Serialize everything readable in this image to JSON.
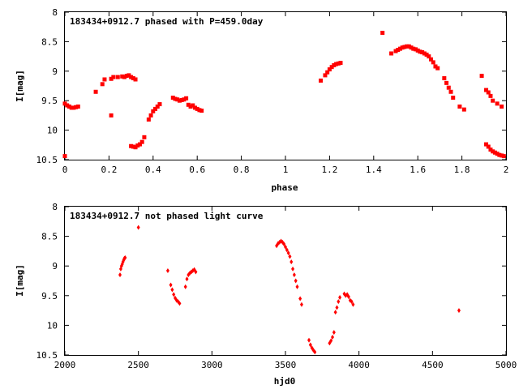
{
  "chart_data": [
    {
      "type": "scatter",
      "title": "183434+0912.7 phased with P=459.0day",
      "xlabel": "phase",
      "ylabel": "I[mag]",
      "xlim": [
        0,
        2
      ],
      "ylim": [
        8,
        10.5
      ],
      "y_inverted": true,
      "grid": false,
      "marker_color": "#ff0000",
      "x_ticks": [
        0,
        0.2,
        0.4,
        0.6,
        0.8,
        1,
        1.2,
        1.4,
        1.6,
        1.8,
        2
      ],
      "x_tick_labels": [
        "0",
        "0.2",
        "0.4",
        "0.6",
        "0.8",
        "1",
        "1.2",
        "1.4",
        "1.6",
        "1.8",
        "2"
      ],
      "y_ticks": [
        8,
        8.5,
        9,
        9.5,
        10,
        10.5
      ],
      "y_tick_labels": [
        "8",
        "8.5",
        "9",
        "9.5",
        "10",
        "10.5"
      ],
      "points": [
        [
          0.0,
          10.44
        ],
        [
          0.0,
          9.55
        ],
        [
          0.01,
          9.58
        ],
        [
          0.02,
          9.6
        ],
        [
          0.03,
          9.62
        ],
        [
          0.04,
          9.62
        ],
        [
          0.05,
          9.61
        ],
        [
          0.06,
          9.6
        ],
        [
          0.14,
          9.35
        ],
        [
          0.17,
          9.22
        ],
        [
          0.18,
          9.14
        ],
        [
          0.21,
          9.13
        ],
        [
          0.22,
          9.1
        ],
        [
          0.24,
          9.1
        ],
        [
          0.26,
          9.09
        ],
        [
          0.27,
          9.1
        ],
        [
          0.28,
          9.08
        ],
        [
          0.29,
          9.07
        ],
        [
          0.3,
          9.1
        ],
        [
          0.31,
          9.12
        ],
        [
          0.32,
          9.14
        ],
        [
          0.21,
          9.75
        ],
        [
          0.3,
          10.27
        ],
        [
          0.31,
          10.28
        ],
        [
          0.32,
          10.29
        ],
        [
          0.33,
          10.26
        ],
        [
          0.34,
          10.24
        ],
        [
          0.35,
          10.2
        ],
        [
          0.36,
          10.12
        ],
        [
          0.38,
          9.82
        ],
        [
          0.39,
          9.75
        ],
        [
          0.4,
          9.68
        ],
        [
          0.41,
          9.64
        ],
        [
          0.42,
          9.6
        ],
        [
          0.43,
          9.56
        ],
        [
          0.49,
          9.45
        ],
        [
          0.5,
          9.47
        ],
        [
          0.51,
          9.48
        ],
        [
          0.52,
          9.5
        ],
        [
          0.53,
          9.49
        ],
        [
          0.54,
          9.48
        ],
        [
          0.55,
          9.46
        ],
        [
          0.56,
          9.57
        ],
        [
          0.57,
          9.6
        ],
        [
          0.58,
          9.58
        ],
        [
          0.59,
          9.62
        ],
        [
          0.6,
          9.64
        ],
        [
          0.61,
          9.66
        ],
        [
          0.62,
          9.67
        ],
        [
          1.16,
          9.16
        ],
        [
          1.18,
          9.07
        ],
        [
          1.19,
          9.02
        ],
        [
          1.2,
          8.97
        ],
        [
          1.21,
          8.93
        ],
        [
          1.22,
          8.9
        ],
        [
          1.23,
          8.88
        ],
        [
          1.24,
          8.87
        ],
        [
          1.25,
          8.86
        ],
        [
          1.44,
          8.35
        ],
        [
          1.48,
          8.7
        ],
        [
          1.5,
          8.66
        ],
        [
          1.51,
          8.64
        ],
        [
          1.52,
          8.62
        ],
        [
          1.53,
          8.6
        ],
        [
          1.54,
          8.59
        ],
        [
          1.55,
          8.58
        ],
        [
          1.56,
          8.58
        ],
        [
          1.57,
          8.6
        ],
        [
          1.58,
          8.62
        ],
        [
          1.59,
          8.63
        ],
        [
          1.6,
          8.65
        ],
        [
          1.61,
          8.67
        ],
        [
          1.62,
          8.68
        ],
        [
          1.63,
          8.7
        ],
        [
          1.64,
          8.72
        ],
        [
          1.65,
          8.75
        ],
        [
          1.66,
          8.8
        ],
        [
          1.67,
          8.85
        ],
        [
          1.68,
          8.92
        ],
        [
          1.69,
          8.95
        ],
        [
          1.72,
          9.12
        ],
        [
          1.73,
          9.2
        ],
        [
          1.74,
          9.28
        ],
        [
          1.75,
          9.35
        ],
        [
          1.76,
          9.45
        ],
        [
          1.79,
          9.6
        ],
        [
          1.81,
          9.65
        ],
        [
          1.89,
          9.08
        ],
        [
          1.91,
          9.32
        ],
        [
          1.92,
          9.36
        ],
        [
          1.93,
          9.42
        ],
        [
          1.94,
          9.5
        ],
        [
          1.96,
          9.55
        ],
        [
          1.98,
          9.6
        ],
        [
          1.91,
          10.24
        ],
        [
          1.92,
          10.28
        ],
        [
          1.93,
          10.33
        ],
        [
          1.94,
          10.36
        ],
        [
          1.95,
          10.38
        ],
        [
          1.96,
          10.4
        ],
        [
          1.97,
          10.42
        ],
        [
          1.98,
          10.43
        ],
        [
          1.99,
          10.44
        ]
      ]
    },
    {
      "type": "scatter",
      "title": "183434+0912.7 not phased light curve",
      "xlabel": "hjd0",
      "ylabel": "I[mag]",
      "xlim": [
        2000,
        5000
      ],
      "ylim": [
        8,
        10.5
      ],
      "y_inverted": true,
      "grid": false,
      "marker_color": "#ff0000",
      "x_ticks": [
        2000,
        2500,
        3000,
        3500,
        4000,
        4500,
        5000
      ],
      "x_tick_labels": [
        "2000",
        "2500",
        "3000",
        "3500",
        "4000",
        "4500",
        "5000"
      ],
      "y_ticks": [
        8,
        8.5,
        9,
        9.5,
        10,
        10.5
      ],
      "y_tick_labels": [
        "8",
        "8.5",
        "9",
        "9.5",
        "10",
        "10.5"
      ],
      "points": [
        [
          2375,
          9.15
        ],
        [
          2380,
          9.05
        ],
        [
          2385,
          9.0
        ],
        [
          2390,
          8.97
        ],
        [
          2395,
          8.93
        ],
        [
          2400,
          8.9
        ],
        [
          2405,
          8.87
        ],
        [
          2410,
          8.86
        ],
        [
          2500,
          8.35
        ],
        [
          2700,
          9.08
        ],
        [
          2720,
          9.32
        ],
        [
          2730,
          9.4
        ],
        [
          2740,
          9.48
        ],
        [
          2750,
          9.54
        ],
        [
          2760,
          9.58
        ],
        [
          2770,
          9.6
        ],
        [
          2780,
          9.63
        ],
        [
          2820,
          9.35
        ],
        [
          2830,
          9.22
        ],
        [
          2840,
          9.15
        ],
        [
          2850,
          9.12
        ],
        [
          2860,
          9.1
        ],
        [
          2870,
          9.08
        ],
        [
          2880,
          9.06
        ],
        [
          2890,
          9.1
        ],
        [
          3440,
          8.66
        ],
        [
          3450,
          8.62
        ],
        [
          3460,
          8.6
        ],
        [
          3470,
          8.58
        ],
        [
          3480,
          8.6
        ],
        [
          3490,
          8.63
        ],
        [
          3500,
          8.68
        ],
        [
          3510,
          8.73
        ],
        [
          3520,
          8.78
        ],
        [
          3530,
          8.84
        ],
        [
          3540,
          8.93
        ],
        [
          3550,
          9.05
        ],
        [
          3560,
          9.15
        ],
        [
          3570,
          9.25
        ],
        [
          3580,
          9.35
        ],
        [
          3600,
          9.55
        ],
        [
          3610,
          9.65
        ],
        [
          3660,
          10.25
        ],
        [
          3670,
          10.33
        ],
        [
          3680,
          10.38
        ],
        [
          3690,
          10.42
        ],
        [
          3700,
          10.45
        ],
        [
          3800,
          10.3
        ],
        [
          3810,
          10.26
        ],
        [
          3820,
          10.2
        ],
        [
          3830,
          10.12
        ],
        [
          3840,
          9.78
        ],
        [
          3850,
          9.7
        ],
        [
          3860,
          9.6
        ],
        [
          3870,
          9.53
        ],
        [
          3900,
          9.47
        ],
        [
          3910,
          9.5
        ],
        [
          3920,
          9.48
        ],
        [
          3930,
          9.52
        ],
        [
          3940,
          9.58
        ],
        [
          3950,
          9.6
        ],
        [
          3960,
          9.65
        ],
        [
          4680,
          9.75
        ]
      ]
    }
  ]
}
